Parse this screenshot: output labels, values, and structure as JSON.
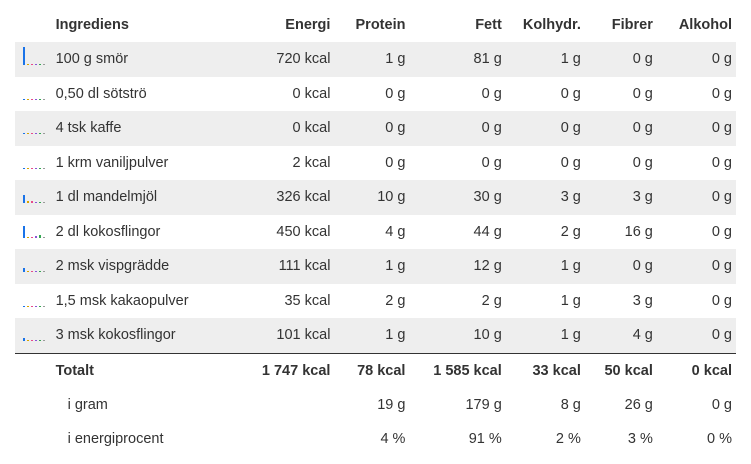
{
  "headers": {
    "name": "Ingrediens",
    "energy": "Energi",
    "protein": "Protein",
    "fat": "Fett",
    "carbs": "Kolhydr.",
    "fiber": "Fibrer",
    "alcohol": "Alkohol"
  },
  "bar_colors": [
    "#1a73e8",
    "#d8a400",
    "#e84b8a",
    "#8a56d8",
    "#33a852",
    "#999999"
  ],
  "ingredients": [
    {
      "name": "100 g smör",
      "energy": "720 kcal",
      "protein": "1 g",
      "fat": "81 g",
      "carbs": "1 g",
      "fiber": "0 g",
      "alcohol": "0 g",
      "bar_levels": [
        1.0,
        0.05,
        0.05,
        0.05,
        0.05,
        0.05
      ]
    },
    {
      "name": "0,50 dl sötströ",
      "energy": "0 kcal",
      "protein": "0 g",
      "fat": "0 g",
      "carbs": "0 g",
      "fiber": "0 g",
      "alcohol": "0 g",
      "bar_levels": [
        0.05,
        0.05,
        0.05,
        0.05,
        0.05,
        0.05
      ]
    },
    {
      "name": "4 tsk kaffe",
      "energy": "0 kcal",
      "protein": "0 g",
      "fat": "0 g",
      "carbs": "0 g",
      "fiber": "0 g",
      "alcohol": "0 g",
      "bar_levels": [
        0.05,
        0.05,
        0.05,
        0.05,
        0.05,
        0.05
      ]
    },
    {
      "name": "1 krm vaniljpulver",
      "energy": "2 kcal",
      "protein": "0 g",
      "fat": "0 g",
      "carbs": "0 g",
      "fiber": "0 g",
      "alcohol": "0 g",
      "bar_levels": [
        0.05,
        0.05,
        0.05,
        0.05,
        0.05,
        0.05
      ]
    },
    {
      "name": "1 dl mandelmjöl",
      "energy": "326 kcal",
      "protein": "10 g",
      "fat": "30 g",
      "carbs": "3 g",
      "fiber": "3 g",
      "alcohol": "0 g",
      "bar_levels": [
        0.45,
        0.1,
        0.1,
        0.05,
        0.05,
        0.05
      ]
    },
    {
      "name": "2 dl kokosflingor",
      "energy": "450 kcal",
      "protein": "4 g",
      "fat": "44 g",
      "carbs": "2 g",
      "fiber": "16 g",
      "alcohol": "0 g",
      "bar_levels": [
        0.65,
        0.05,
        0.05,
        0.1,
        0.15,
        0.05
      ]
    },
    {
      "name": "2 msk vispgrädde",
      "energy": "111 kcal",
      "protein": "1 g",
      "fat": "12 g",
      "carbs": "1 g",
      "fiber": "0 g",
      "alcohol": "0 g",
      "bar_levels": [
        0.2,
        0.05,
        0.05,
        0.05,
        0.05,
        0.05
      ]
    },
    {
      "name": "1,5 msk kakaopulver",
      "energy": "35 kcal",
      "protein": "2 g",
      "fat": "2 g",
      "carbs": "1 g",
      "fiber": "3 g",
      "alcohol": "0 g",
      "bar_levels": [
        0.08,
        0.05,
        0.05,
        0.05,
        0.05,
        0.05
      ]
    },
    {
      "name": "3 msk kokosflingor",
      "energy": "101 kcal",
      "protein": "1 g",
      "fat": "10 g",
      "carbs": "1 g",
      "fiber": "4 g",
      "alcohol": "0 g",
      "bar_levels": [
        0.15,
        0.05,
        0.05,
        0.05,
        0.05,
        0.05
      ]
    }
  ],
  "total": {
    "name": "Totalt",
    "energy": "1 747 kcal",
    "protein": "78 kcal",
    "fat": "1 585 kcal",
    "carbs": "33 kcal",
    "fiber": "50 kcal",
    "alcohol": "0 kcal"
  },
  "in_grams": {
    "name": "i gram",
    "protein": "19 g",
    "fat": "179 g",
    "carbs": "8 g",
    "fiber": "26 g",
    "alcohol": "0 g"
  },
  "energy_percent": {
    "name": "i energiprocent",
    "protein": "4 %",
    "fat": "91 %",
    "carbs": "2 %",
    "fiber": "3 %",
    "alcohol": "0 %"
  }
}
